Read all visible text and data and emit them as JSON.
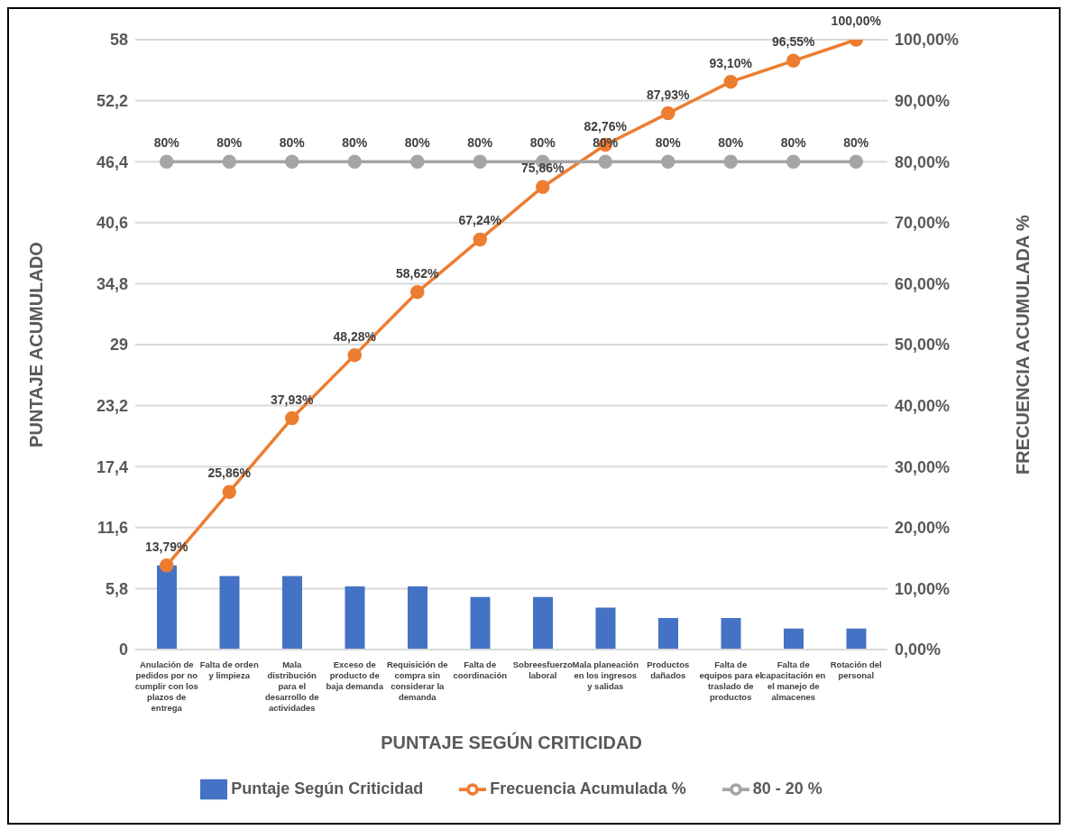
{
  "chart_data": {
    "type": "bar",
    "xlabel": "PUNTAJE SEGÚN CRITICIDAD",
    "ylabel": "PUNTAJE ACUMULADO",
    "y2label": "FRECUENCIA ACUMULADA %",
    "categories": [
      "Anulación de pedidos por no cumplir con los plazos de entrega",
      "Falta de orden y limpieza",
      "Mala distribución para el desarrollo de actividades",
      "Exceso de producto de baja demanda",
      "Requisición de compra sin considerar la demanda",
      "Falta de coordinación",
      "Sobreesfuerzo laboral",
      "Mala planeación en los ingresos y salidas",
      "Productos dañados",
      "Falta de equipos para el traslado de productos",
      "Falta de capacitación en el manejo de almacenes",
      "Rotación del personal"
    ],
    "series": [
      {
        "name": "Puntaje Según Criticidad",
        "color": "#4472c4",
        "values": [
          8,
          7,
          7,
          6,
          6,
          5,
          5,
          4,
          3,
          3,
          2,
          2
        ]
      },
      {
        "name": "Frecuencia Acumulada %",
        "type": "line",
        "axis": "y2",
        "color": "#ed7d31",
        "marker": "circle",
        "values": [
          13.79,
          25.86,
          37.93,
          48.28,
          58.62,
          67.24,
          75.86,
          82.76,
          87.93,
          93.1,
          96.55,
          100
        ],
        "value_labels": [
          "13,79%",
          "25,86%",
          "37,93%",
          "48,28%",
          "58,62%",
          "67,24%",
          "75,86%",
          "82,76%",
          "87,93%",
          "93,10%",
          "96,55%",
          "100,00%"
        ]
      },
      {
        "name": "80 - 20 %",
        "type": "line",
        "axis": "y2",
        "color": "#a5a5a5",
        "marker": "circle",
        "values": [
          80,
          80,
          80,
          80,
          80,
          80,
          80,
          80,
          80,
          80,
          80,
          80
        ],
        "value_labels": [
          "80%",
          "80%",
          "80%",
          "80%",
          "80%",
          "80%",
          "80%",
          "80%",
          "80%",
          "80%",
          "80%",
          "80%"
        ]
      }
    ],
    "ylim": [
      0,
      58
    ],
    "yticks": [
      0,
      {
        "value": 5.8,
        "label": "5,8"
      },
      {
        "value": 11.6,
        "label": "11,6"
      },
      {
        "value": 17.4,
        "label": "17,4"
      },
      {
        "value": 23.2,
        "label": "23,2"
      },
      29,
      {
        "value": 34.8,
        "label": "34,8"
      },
      {
        "value": 40.6,
        "label": "40,6"
      },
      {
        "value": 46.4,
        "label": "46,4"
      },
      {
        "value": 52.2,
        "label": "52,2"
      },
      58
    ],
    "y2lim": [
      0,
      100
    ],
    "y2ticks": [
      {
        "value": 0,
        "label": "0,00%"
      },
      {
        "value": 10,
        "label": "10,00%"
      },
      {
        "value": 20,
        "label": "20,00%"
      },
      {
        "value": 30,
        "label": "30,00%"
      },
      {
        "value": 40,
        "label": "40,00%"
      },
      {
        "value": 50,
        "label": "50,00%"
      },
      {
        "value": 60,
        "label": "60,00%"
      },
      {
        "value": 70,
        "label": "70,00%"
      },
      {
        "value": 80,
        "label": "80,00%"
      },
      {
        "value": 90,
        "label": "90,00%"
      },
      {
        "value": 100,
        "label": "100,00%"
      }
    ],
    "grid": "y",
    "legend": "bottom"
  }
}
